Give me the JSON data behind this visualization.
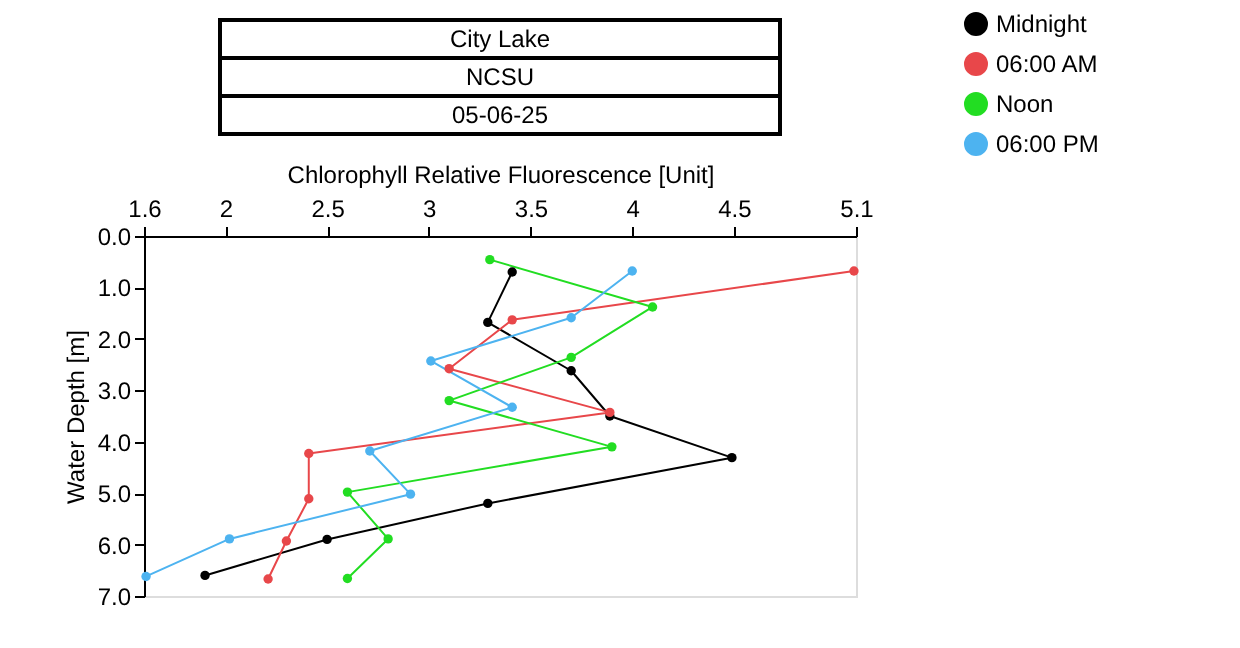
{
  "chart_data": {
    "type": "line",
    "title": "City Lake",
    "subtitle": "NCSU",
    "annotations": [
      "05-06-25"
    ],
    "xlabel": "Chlorophyll Relative Fluorescence [Unit]",
    "ylabel": "Water Depth [m]",
    "xlim": [
      1.6,
      5.1
    ],
    "xticks": [
      1.6,
      2,
      2.5,
      3,
      3.5,
      4,
      4.5,
      5.1
    ],
    "ylim": [
      7,
      0
    ],
    "yticks": [
      {
        "value": 0,
        "label": "0.0"
      },
      {
        "value": 1,
        "label": "1.0"
      },
      {
        "value": 2,
        "label": "2.0"
      },
      {
        "value": 3,
        "label": "3.0"
      },
      {
        "value": 4,
        "label": "4.0"
      },
      {
        "value": 5,
        "label": "5.0"
      },
      {
        "value": 6,
        "label": "6.0"
      },
      {
        "value": 7,
        "label": "7.0"
      }
    ],
    "grid": false,
    "legend": "top right",
    "marker": "circle",
    "line_style": "solid",
    "series": [
      {
        "name": "Midnight",
        "color": "#000000",
        "x": [
          3.41,
          3.29,
          3.7,
          3.89,
          4.49,
          3.29,
          2.5,
          1.9
        ],
        "values": [
          0.7,
          1.68,
          2.62,
          3.5,
          4.31,
          5.2,
          5.9,
          6.6
        ]
      },
      {
        "name": "06:00 AM",
        "color": "#e8474a",
        "x": [
          5.09,
          3.41,
          3.1,
          3.89,
          2.41,
          2.41,
          2.3,
          2.21
        ],
        "values": [
          0.68,
          1.63,
          2.58,
          3.43,
          4.23,
          5.11,
          5.93,
          6.67
        ]
      },
      {
        "name": "Noon",
        "color": "#22dd22",
        "x": [
          3.3,
          4.1,
          3.7,
          3.1,
          3.9,
          2.6,
          2.8,
          2.6
        ],
        "values": [
          0.46,
          1.38,
          2.36,
          3.2,
          4.1,
          4.98,
          5.89,
          6.66
        ]
      },
      {
        "name": "06:00 PM",
        "color": "#4db3f0",
        "x": [
          4.0,
          3.7,
          3.01,
          3.41,
          2.71,
          2.91,
          2.02,
          1.61
        ],
        "values": [
          0.68,
          1.59,
          2.43,
          3.33,
          4.18,
          5.02,
          5.89,
          6.62
        ]
      }
    ]
  }
}
